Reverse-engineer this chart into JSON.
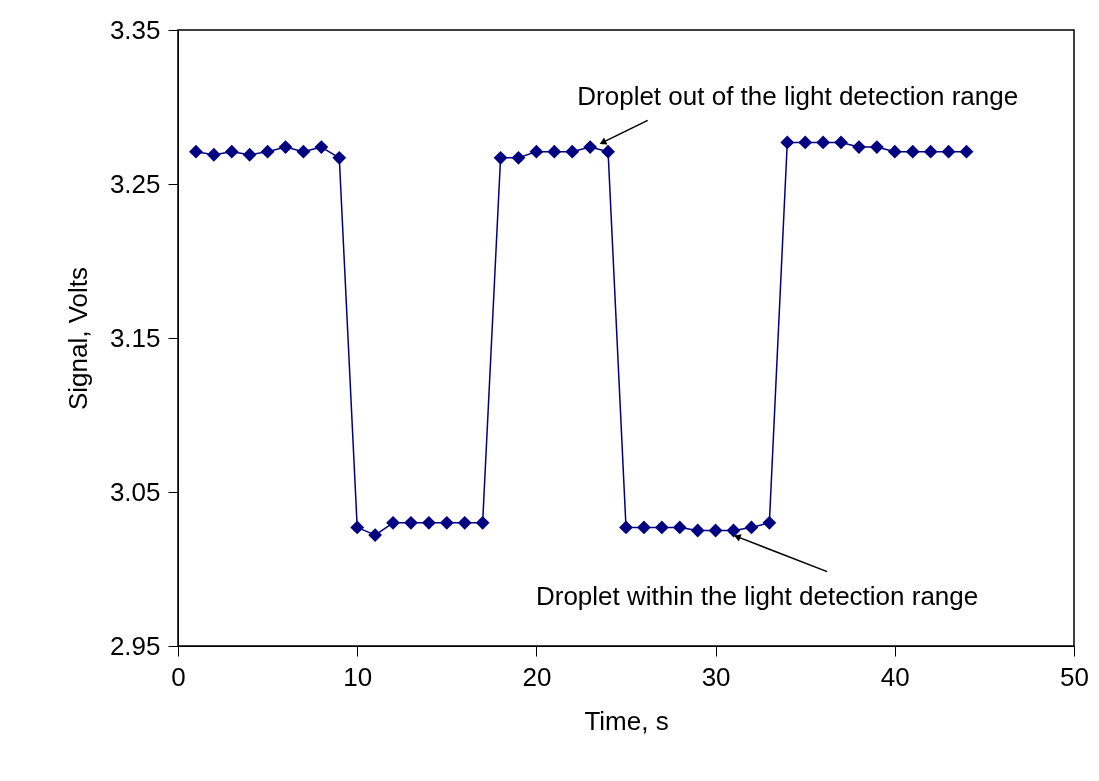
{
  "chart_data": {
    "type": "line",
    "xlabel": "Time, s",
    "ylabel": "Signal, Volts",
    "x": [
      1,
      2,
      3,
      4,
      5,
      6,
      7,
      8,
      9,
      10,
      11,
      12,
      13,
      14,
      15,
      16,
      17,
      18,
      19,
      20,
      21,
      22,
      23,
      24,
      25,
      26,
      27,
      28,
      29,
      30,
      31,
      32,
      33,
      34,
      35,
      36,
      37,
      38,
      39,
      40,
      41,
      42,
      43,
      44
    ],
    "series": [
      {
        "color": "#000080",
        "values": [
          3.271,
          3.269,
          3.271,
          3.269,
          3.271,
          3.274,
          3.271,
          3.274,
          3.267,
          3.027,
          3.022,
          3.03,
          3.03,
          3.03,
          3.03,
          3.03,
          3.03,
          3.267,
          3.267,
          3.271,
          3.271,
          3.271,
          3.274,
          3.271,
          3.027,
          3.027,
          3.027,
          3.027,
          3.025,
          3.025,
          3.025,
          3.027,
          3.03,
          3.277,
          3.277,
          3.277,
          3.277,
          3.274,
          3.274,
          3.271,
          3.271,
          3.271,
          3.271,
          3.271
        ]
      }
    ],
    "xlim": [
      0,
      50
    ],
    "xticks": [
      0,
      10,
      20,
      30,
      40,
      50
    ],
    "ylim": [
      2.95,
      3.35
    ],
    "yticks": [
      2.95,
      3.05,
      3.15,
      3.25,
      3.35
    ],
    "grid": false,
    "marker": "diamond",
    "line_style": "solid",
    "annotations": [
      {
        "text": "Droplet out of the light detection range",
        "x": 23.7,
        "y": 3.277
      },
      {
        "text": "Droplet within the light detection range",
        "x": 31.2,
        "y": 3.021
      }
    ]
  }
}
